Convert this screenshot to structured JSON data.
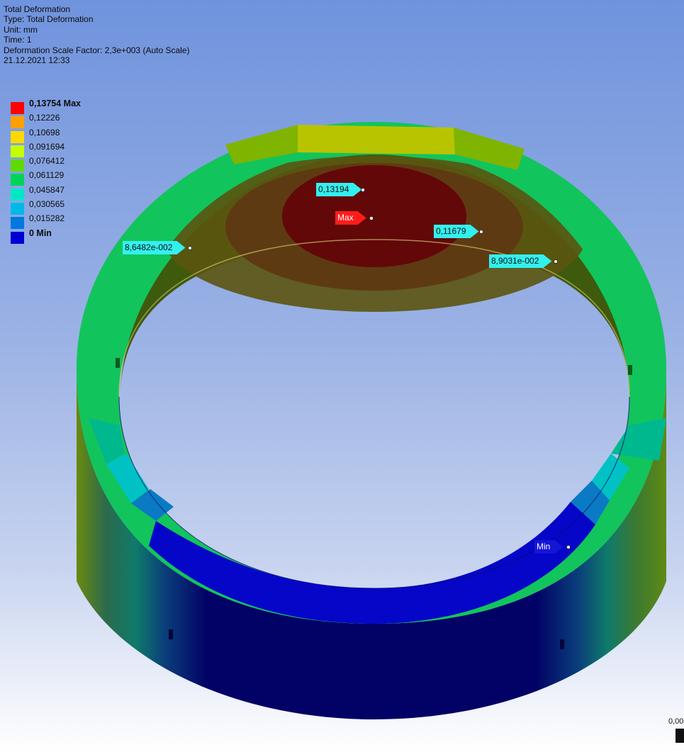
{
  "header": {
    "title": "Total Deformation",
    "type_line": "Type: Total Deformation",
    "unit_line": "Unit: mm",
    "time_line": "Time: 1",
    "scale_line": "Deformation Scale Factor: 2,3e+003 (Auto Scale)",
    "date_line": "21.12.2021 12:33"
  },
  "legend": {
    "items": [
      {
        "label": "0,13754 Max",
        "color": "#ff0000"
      },
      {
        "label": "0,12226",
        "color": "#ff9f00"
      },
      {
        "label": "0,10698",
        "color": "#ffd800"
      },
      {
        "label": "0,091694",
        "color": "#c4ff00"
      },
      {
        "label": "0,076412",
        "color": "#5fd900"
      },
      {
        "label": "0,061129",
        "color": "#00d35a"
      },
      {
        "label": "0,045847",
        "color": "#00e7c8"
      },
      {
        "label": "0,030565",
        "color": "#00b9e6"
      },
      {
        "label": "0,015282",
        "color": "#0078e0"
      },
      {
        "label": "0 Min",
        "color": "#0000d6"
      }
    ]
  },
  "probes": {
    "p1": "0,13194",
    "max": "Max",
    "p2": "0,11679",
    "p3": "8,6482e-002",
    "p4": "8,9031e-002",
    "min": "Min"
  },
  "scale_ruler": {
    "label": "0,00"
  }
}
